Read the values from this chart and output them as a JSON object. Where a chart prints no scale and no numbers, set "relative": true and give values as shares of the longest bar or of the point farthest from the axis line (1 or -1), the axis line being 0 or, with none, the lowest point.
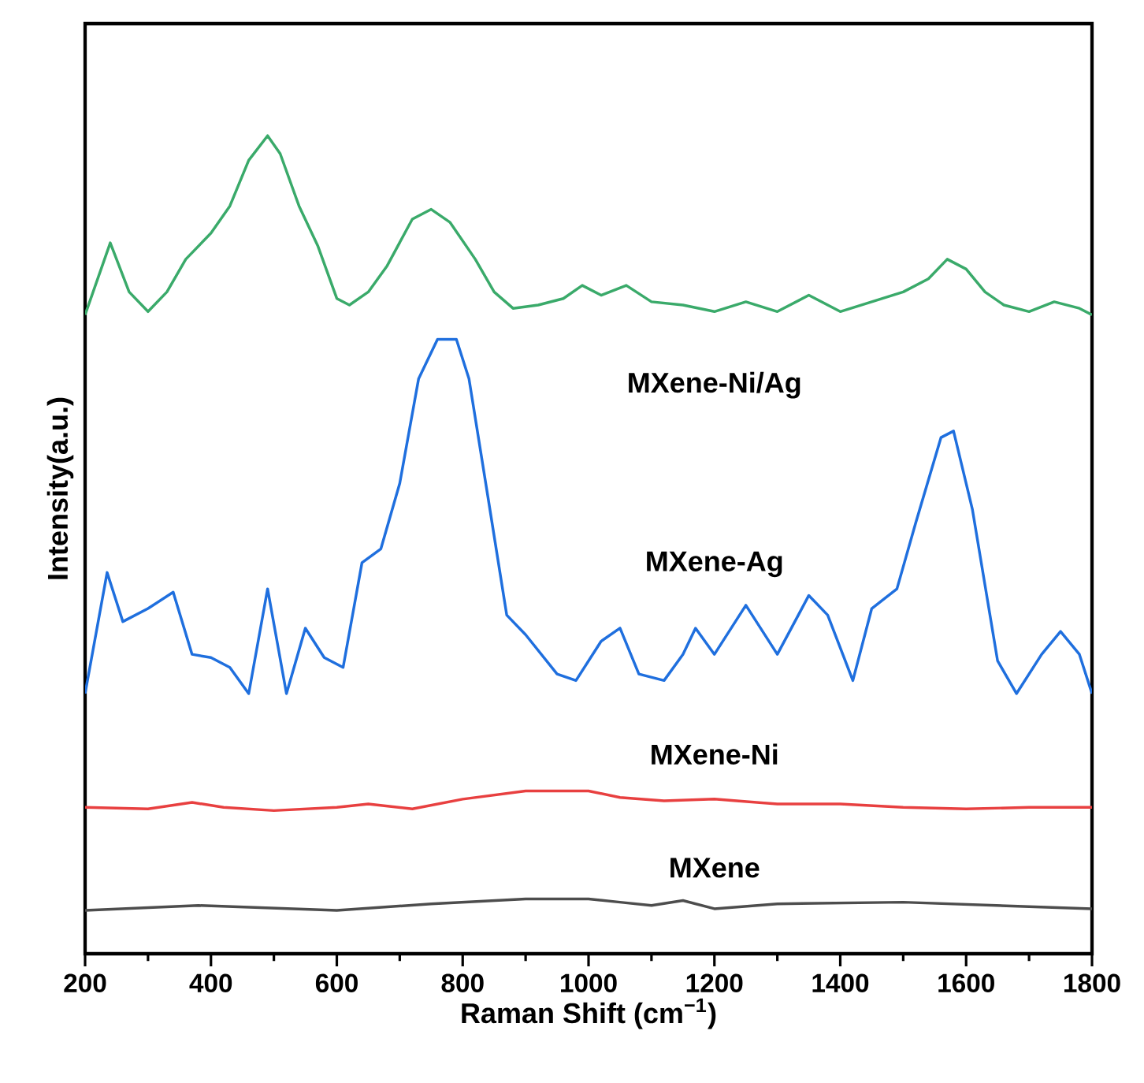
{
  "chart_data": {
    "type": "line",
    "relative": true,
    "xlabel": "Raman Shift (cm$^{−1}$)",
    "ylabel": "Intensity(a.u.)",
    "xlim": [
      200,
      1800
    ],
    "xticks": [
      200,
      400,
      600,
      800,
      1000,
      1200,
      1400,
      1600,
      1800
    ],
    "series": [
      {
        "name": "MXene-Ni/Ag",
        "color": "#3aaa6a",
        "x": [
          200,
          240,
          270,
          300,
          330,
          360,
          400,
          430,
          460,
          490,
          510,
          540,
          570,
          600,
          620,
          650,
          680,
          720,
          750,
          780,
          820,
          850,
          880,
          920,
          960,
          990,
          1020,
          1060,
          1100,
          1150,
          1200,
          1250,
          1300,
          1350,
          1400,
          1450,
          1500,
          1540,
          1570,
          1600,
          1630,
          1660,
          1700,
          1740,
          1780,
          1800
        ],
        "values": [
          0.781,
          0.869,
          0.809,
          0.785,
          0.809,
          0.849,
          0.881,
          0.914,
          0.97,
          1.0,
          0.978,
          0.914,
          0.865,
          0.801,
          0.793,
          0.809,
          0.841,
          0.898,
          0.91,
          0.894,
          0.849,
          0.809,
          0.789,
          0.793,
          0.801,
          0.817,
          0.805,
          0.817,
          0.797,
          0.793,
          0.785,
          0.797,
          0.785,
          0.805,
          0.785,
          0.797,
          0.809,
          0.825,
          0.849,
          0.837,
          0.809,
          0.793,
          0.785,
          0.797,
          0.789,
          0.781
        ]
      },
      {
        "name": "MXene-Ag",
        "color": "#1f6fde",
        "x": [
          200,
          235,
          260,
          300,
          340,
          370,
          400,
          430,
          460,
          490,
          520,
          550,
          580,
          610,
          640,
          670,
          700,
          730,
          760,
          790,
          810,
          840,
          870,
          900,
          950,
          980,
          1020,
          1050,
          1080,
          1120,
          1150,
          1170,
          1200,
          1250,
          1300,
          1350,
          1380,
          1420,
          1450,
          1490,
          1520,
          1560,
          1580,
          1610,
          1650,
          1680,
          1720,
          1750,
          1780,
          1800
        ],
        "values": [
          0.318,
          0.466,
          0.406,
          0.422,
          0.442,
          0.366,
          0.362,
          0.35,
          0.318,
          0.446,
          0.318,
          0.398,
          0.362,
          0.35,
          0.478,
          0.495,
          0.575,
          0.703,
          0.751,
          0.751,
          0.703,
          0.559,
          0.414,
          0.39,
          0.342,
          0.334,
          0.382,
          0.398,
          0.342,
          0.334,
          0.366,
          0.398,
          0.366,
          0.426,
          0.366,
          0.438,
          0.414,
          0.334,
          0.422,
          0.446,
          0.527,
          0.631,
          0.639,
          0.543,
          0.358,
          0.318,
          0.366,
          0.394,
          0.366,
          0.318
        ]
      },
      {
        "name": "MXene-Ni",
        "color": "#e84040",
        "x": [
          200,
          300,
          370,
          420,
          500,
          600,
          650,
          720,
          800,
          900,
          1000,
          1050,
          1120,
          1200,
          1300,
          1400,
          1500,
          1600,
          1700,
          1800
        ],
        "values": [
          0.179,
          0.177,
          0.185,
          0.179,
          0.175,
          0.179,
          0.183,
          0.177,
          0.189,
          0.199,
          0.199,
          0.191,
          0.187,
          0.189,
          0.183,
          0.183,
          0.179,
          0.177,
          0.179,
          0.179
        ]
      },
      {
        "name": "MXene",
        "color": "#4d4d4d",
        "x": [
          200,
          380,
          600,
          750,
          900,
          1000,
          1050,
          1100,
          1150,
          1200,
          1300,
          1500,
          1800
        ],
        "values": [
          0.053,
          0.059,
          0.053,
          0.061,
          0.067,
          0.067,
          0.063,
          0.059,
          0.065,
          0.055,
          0.061,
          0.063,
          0.055
        ]
      }
    ]
  }
}
